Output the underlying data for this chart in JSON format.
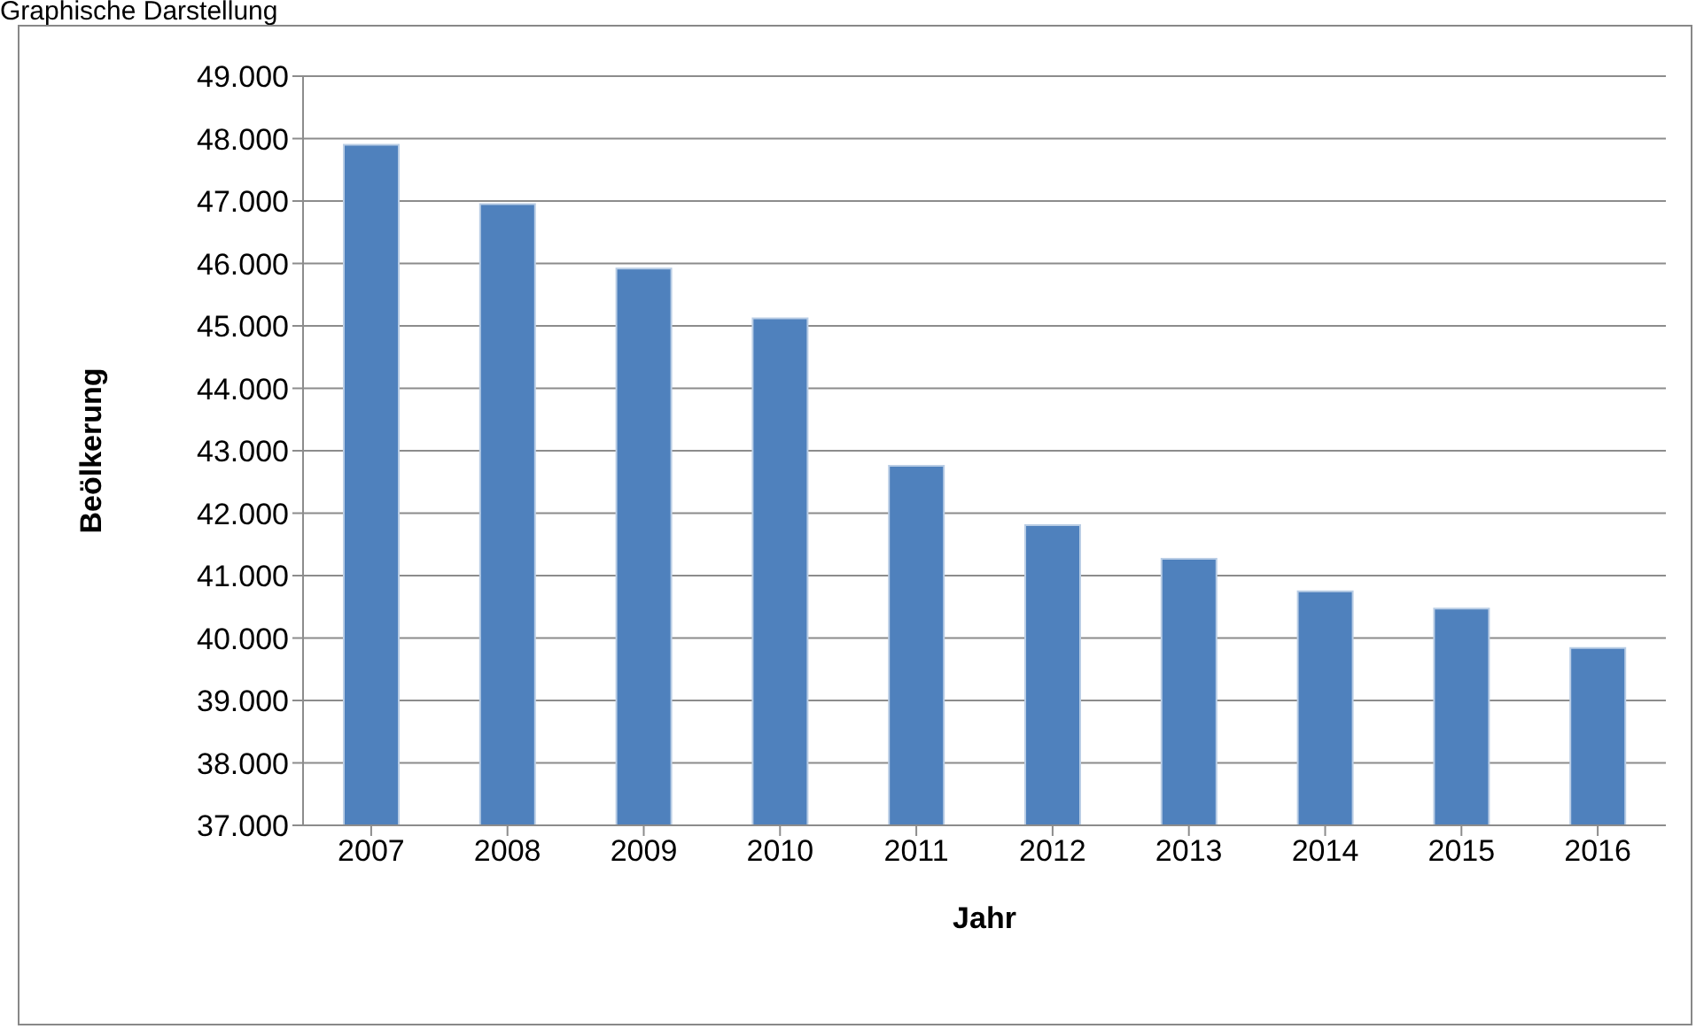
{
  "chart_data": {
    "type": "bar",
    "title": "Graphische Darstellung",
    "xlabel": "Jahr",
    "ylabel": "Beölkerung",
    "categories": [
      "2007",
      "2008",
      "2009",
      "2010",
      "2011",
      "2012",
      "2013",
      "2014",
      "2015",
      "2016"
    ],
    "values": [
      47900,
      46950,
      45920,
      45120,
      42760,
      41810,
      41270,
      40750,
      40470,
      39840
    ],
    "color": "#4f81bd",
    "ylim": [
      37000,
      49000
    ],
    "yticks": [
      {
        "value": 37000,
        "label": "37.000"
      },
      {
        "value": 38000,
        "label": "38.000"
      },
      {
        "value": 39000,
        "label": "39.000"
      },
      {
        "value": 40000,
        "label": "40.000"
      },
      {
        "value": 41000,
        "label": "41.000"
      },
      {
        "value": 42000,
        "label": "42.000"
      },
      {
        "value": 43000,
        "label": "43.000"
      },
      {
        "value": 44000,
        "label": "44.000"
      },
      {
        "value": 45000,
        "label": "45.000"
      },
      {
        "value": 46000,
        "label": "46.000"
      },
      {
        "value": 47000,
        "label": "47.000"
      },
      {
        "value": 48000,
        "label": "48.000"
      },
      {
        "value": 49000,
        "label": "49.000"
      }
    ],
    "grid": "y"
  }
}
